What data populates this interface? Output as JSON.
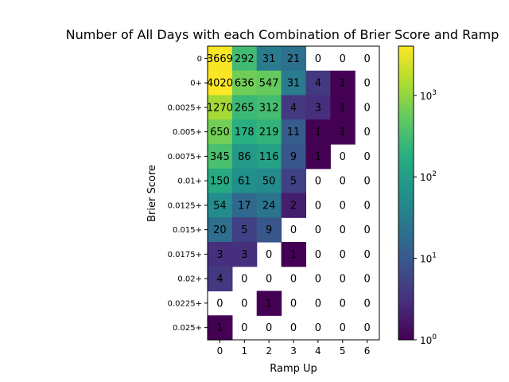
{
  "chart_data": {
    "type": "heatmap",
    "title": "Number of All Days with each Combination of Brier Score and Ramp",
    "xlabel": "Ramp Up",
    "ylabel": "Brier Score",
    "x_categories": [
      "0",
      "1",
      "2",
      "3",
      "4",
      "5",
      "6"
    ],
    "y_categories": [
      "0",
      "0+",
      "0.0025+",
      "0.005+",
      "0.0075+",
      "0.01+",
      "0.0125+",
      "0.015+",
      "0.0175+",
      "0.02+",
      "0.0225+",
      "0.025+"
    ],
    "values": [
      [
        3669,
        292,
        31,
        21,
        0,
        0,
        0
      ],
      [
        4020,
        636,
        547,
        31,
        4,
        1,
        0
      ],
      [
        1270,
        265,
        312,
        4,
        3,
        1,
        0
      ],
      [
        650,
        178,
        219,
        11,
        1,
        1,
        0
      ],
      [
        345,
        86,
        116,
        9,
        1,
        0,
        0
      ],
      [
        150,
        61,
        50,
        5,
        0,
        0,
        0
      ],
      [
        54,
        17,
        24,
        2,
        0,
        0,
        0
      ],
      [
        20,
        5,
        9,
        0,
        0,
        0,
        0
      ],
      [
        3,
        3,
        0,
        1,
        0,
        0,
        0
      ],
      [
        4,
        0,
        0,
        0,
        0,
        0,
        0
      ],
      [
        0,
        0,
        1,
        0,
        0,
        0,
        0
      ],
      [
        1,
        0,
        0,
        0,
        0,
        0,
        0
      ]
    ],
    "zero_cells": "blank (white)",
    "colorbar": {
      "scale": "log",
      "colormap": "viridis",
      "range": [
        1,
        4020
      ],
      "ticks": [
        {
          "value": 1,
          "base": "10",
          "exp": "0"
        },
        {
          "value": 10,
          "base": "10",
          "exp": "1"
        },
        {
          "value": 100,
          "base": "10",
          "exp": "2"
        },
        {
          "value": 1000,
          "base": "10",
          "exp": "3"
        }
      ]
    },
    "grid": false,
    "legend": "colorbar right"
  }
}
